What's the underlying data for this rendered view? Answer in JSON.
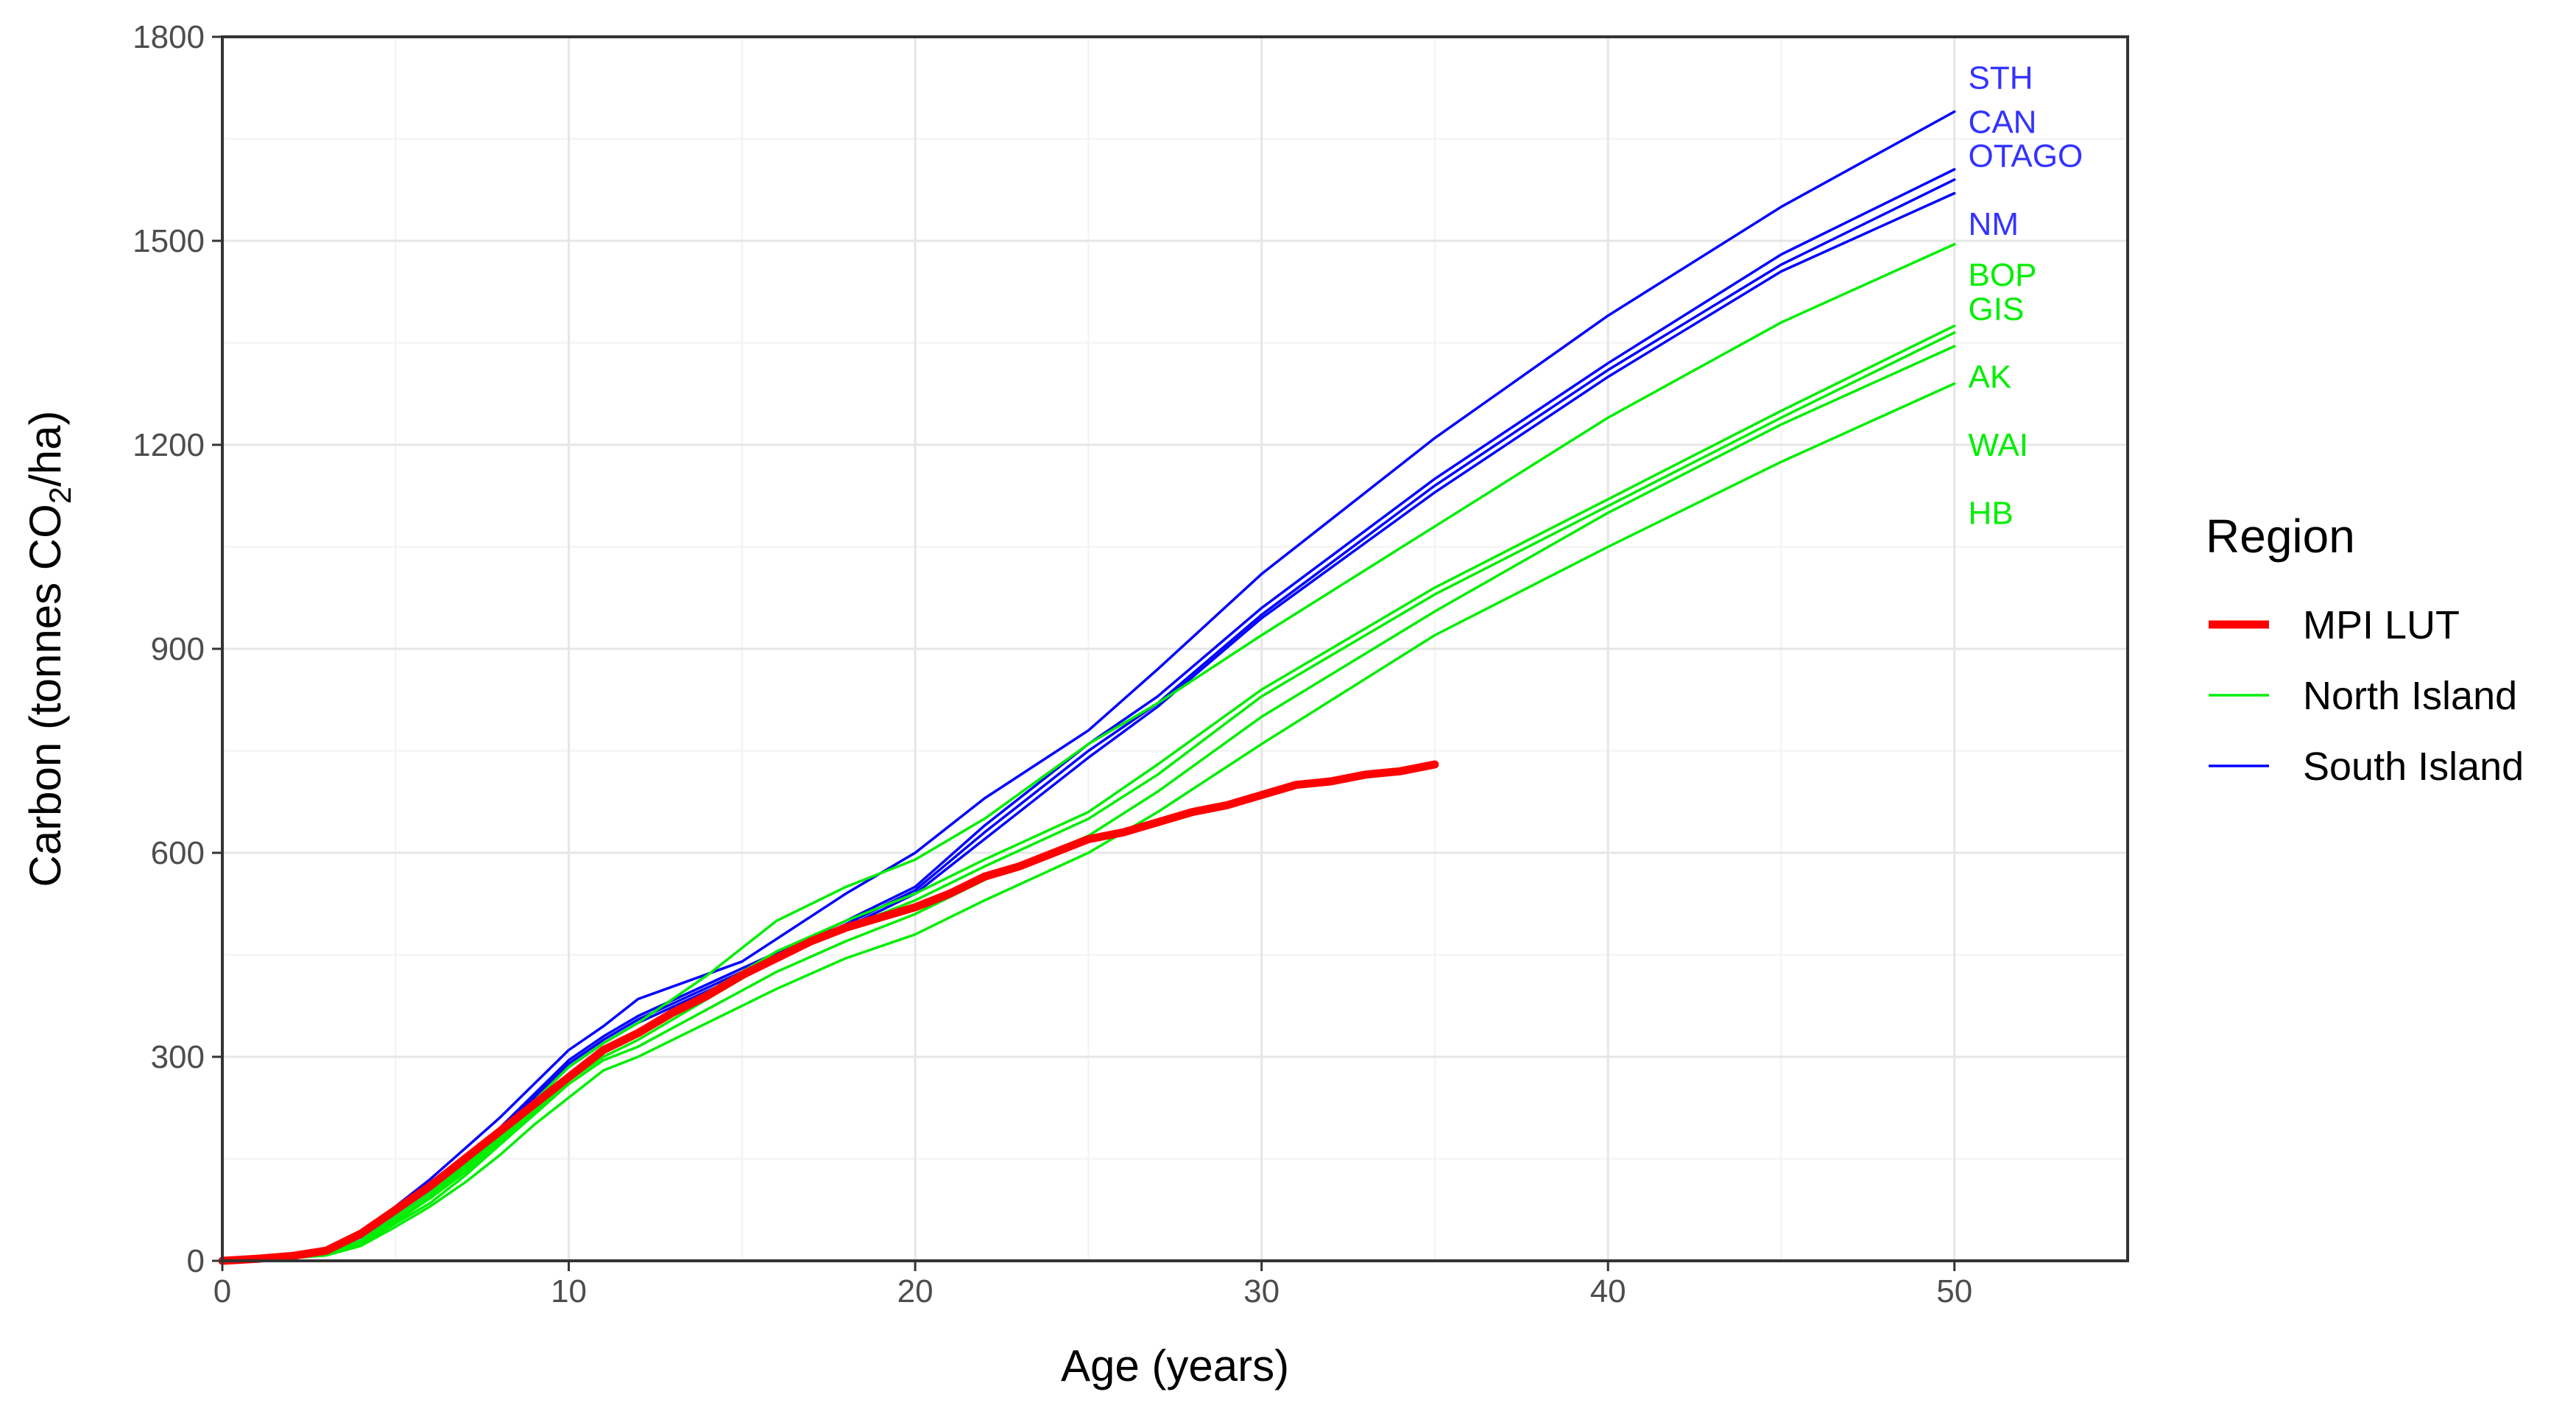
{
  "chart_data": {
    "type": "line",
    "xlabel": "Age (years)",
    "ylabel_parts": [
      "Carbon (tonnes CO",
      "2",
      "/ha)"
    ],
    "xlim": [
      0,
      55
    ],
    "ylim": [
      0,
      1800
    ],
    "xticks": [
      0,
      10,
      20,
      30,
      40,
      50
    ],
    "yticks": [
      0,
      300,
      600,
      900,
      1200,
      1500,
      1800
    ],
    "grid": true,
    "legend": {
      "title": "Region",
      "placement": "right",
      "entries": [
        {
          "label": "MPI LUT",
          "color": "#ff0000",
          "width": "thick"
        },
        {
          "label": "North Island",
          "color": "#00ee00",
          "width": "thin"
        },
        {
          "label": "South Island",
          "color": "#0000ff",
          "width": "thin"
        }
      ]
    },
    "series": [
      {
        "name": "MPI LUT",
        "group": "MPI LUT",
        "color": "#ff0000",
        "x": [
          0,
          1,
          2,
          3,
          4,
          5,
          6,
          7,
          8,
          9,
          10,
          11,
          12,
          13,
          14,
          15,
          16,
          17,
          18,
          19,
          20,
          21,
          22,
          23,
          24,
          25,
          26,
          27,
          28,
          29,
          30,
          31,
          32,
          33,
          34,
          35
        ],
        "y": [
          0,
          3,
          7,
          15,
          40,
          75,
          110,
          150,
          190,
          230,
          270,
          310,
          335,
          365,
          390,
          420,
          445,
          470,
          490,
          505,
          520,
          540,
          565,
          580,
          600,
          620,
          630,
          645,
          660,
          670,
          685,
          700,
          705,
          715,
          720,
          730
        ]
      },
      {
        "name": "STH",
        "group": "South Island",
        "color": "#0000ff",
        "x": [
          0,
          1,
          2,
          3,
          4,
          5,
          6,
          7,
          8,
          9,
          10,
          11,
          12,
          15,
          18,
          20,
          22,
          25,
          27,
          30,
          35,
          40,
          45,
          50
        ],
        "y": [
          0,
          2,
          6,
          14,
          40,
          80,
          120,
          165,
          210,
          260,
          310,
          345,
          385,
          440,
          540,
          600,
          680,
          780,
          870,
          1010,
          1210,
          1390,
          1550,
          1690
        ]
      },
      {
        "name": "CAN",
        "group": "South Island",
        "color": "#0000ff",
        "x": [
          0,
          1,
          2,
          3,
          4,
          5,
          6,
          7,
          8,
          9,
          10,
          11,
          12,
          15,
          18,
          20,
          22,
          25,
          27,
          30,
          35,
          40,
          45,
          50
        ],
        "y": [
          0,
          2,
          6,
          12,
          35,
          70,
          110,
          150,
          195,
          245,
          295,
          330,
          360,
          430,
          500,
          550,
          640,
          760,
          830,
          960,
          1150,
          1320,
          1480,
          1605
        ]
      },
      {
        "name": "OTAGO",
        "group": "South Island",
        "color": "#0000ff",
        "x": [
          0,
          1,
          2,
          3,
          4,
          5,
          6,
          7,
          8,
          9,
          10,
          11,
          12,
          15,
          18,
          20,
          22,
          25,
          27,
          30,
          35,
          40,
          45,
          50
        ],
        "y": [
          0,
          2,
          6,
          12,
          35,
          70,
          105,
          145,
          190,
          240,
          290,
          325,
          355,
          425,
          495,
          545,
          630,
          750,
          820,
          950,
          1140,
          1310,
          1465,
          1590
        ]
      },
      {
        "name": "NM",
        "group": "South Island",
        "color": "#0000ff",
        "x": [
          0,
          1,
          2,
          3,
          4,
          5,
          6,
          7,
          8,
          9,
          10,
          11,
          12,
          15,
          18,
          20,
          22,
          25,
          27,
          30,
          35,
          40,
          45,
          50
        ],
        "y": [
          0,
          2,
          5,
          10,
          30,
          65,
          100,
          140,
          185,
          235,
          285,
          320,
          350,
          420,
          490,
          540,
          620,
          740,
          815,
          945,
          1130,
          1300,
          1455,
          1570
        ]
      },
      {
        "name": "BOP",
        "group": "North Island",
        "color": "#00ee00",
        "x": [
          0,
          1,
          2,
          3,
          4,
          5,
          6,
          7,
          8,
          9,
          10,
          11,
          12,
          14,
          16,
          18,
          20,
          22,
          25,
          27,
          30,
          35,
          40,
          45,
          50
        ],
        "y": [
          0,
          2,
          5,
          10,
          30,
          65,
          100,
          140,
          185,
          235,
          285,
          320,
          350,
          420,
          500,
          550,
          590,
          650,
          760,
          820,
          920,
          1080,
          1240,
          1380,
          1495
        ]
      },
      {
        "name": "GIS",
        "group": "North Island",
        "color": "#00ee00",
        "x": [
          0,
          1,
          2,
          3,
          4,
          5,
          6,
          7,
          8,
          9,
          10,
          11,
          12,
          14,
          16,
          18,
          20,
          22,
          25,
          27,
          30,
          35,
          40,
          45,
          50
        ],
        "y": [
          0,
          2,
          5,
          10,
          28,
          60,
          95,
          135,
          180,
          225,
          275,
          310,
          335,
          395,
          455,
          500,
          540,
          590,
          660,
          730,
          840,
          990,
          1120,
          1250,
          1375
        ]
      },
      {
        "name": "AK",
        "group": "North Island",
        "color": "#00ee00",
        "x": [
          0,
          1,
          2,
          3,
          4,
          5,
          6,
          7,
          8,
          9,
          10,
          11,
          12,
          14,
          16,
          18,
          20,
          22,
          25,
          27,
          30,
          35,
          40,
          45,
          50
        ],
        "y": [
          0,
          2,
          5,
          10,
          27,
          58,
          92,
          130,
          175,
          220,
          265,
          300,
          325,
          385,
          445,
          490,
          530,
          580,
          650,
          715,
          830,
          980,
          1110,
          1240,
          1365
        ]
      },
      {
        "name": "WAI",
        "group": "North Island",
        "color": "#00ee00",
        "x": [
          0,
          1,
          2,
          3,
          4,
          5,
          6,
          7,
          8,
          9,
          10,
          11,
          12,
          14,
          16,
          18,
          20,
          22,
          25,
          27,
          30,
          35,
          40,
          45,
          50
        ],
        "y": [
          0,
          2,
          5,
          10,
          25,
          55,
          85,
          125,
          170,
          215,
          260,
          295,
          315,
          370,
          425,
          470,
          510,
          560,
          625,
          690,
          800,
          955,
          1100,
          1230,
          1345
        ]
      },
      {
        "name": "HB",
        "group": "North Island",
        "color": "#00ee00",
        "x": [
          0,
          1,
          2,
          3,
          4,
          5,
          6,
          7,
          8,
          9,
          10,
          11,
          12,
          14,
          16,
          18,
          20,
          22,
          25,
          27,
          30,
          35,
          40,
          45,
          50
        ],
        "y": [
          0,
          2,
          4,
          8,
          22,
          50,
          80,
          115,
          155,
          200,
          240,
          280,
          300,
          350,
          400,
          445,
          480,
          530,
          600,
          660,
          760,
          920,
          1050,
          1175,
          1290
        ]
      }
    ],
    "end_labels": [
      {
        "text": "STH",
        "color": "#3333ff",
        "y": 1740
      },
      {
        "text": "CAN",
        "color": "#3333ff",
        "y": 1675
      },
      {
        "text": "OTAGO",
        "color": "#3333ff",
        "y": 1625
      },
      {
        "text": "NM",
        "color": "#3333ff",
        "y": 1525
      },
      {
        "text": "BOP",
        "color": "#00ee00",
        "y": 1450
      },
      {
        "text": "GIS",
        "color": "#00ee00",
        "y": 1400
      },
      {
        "text": "AK",
        "color": "#00ee00",
        "y": 1300
      },
      {
        "text": "WAI",
        "color": "#00ee00",
        "y": 1200
      },
      {
        "text": "HB",
        "color": "#00ee00",
        "y": 1100
      }
    ]
  }
}
